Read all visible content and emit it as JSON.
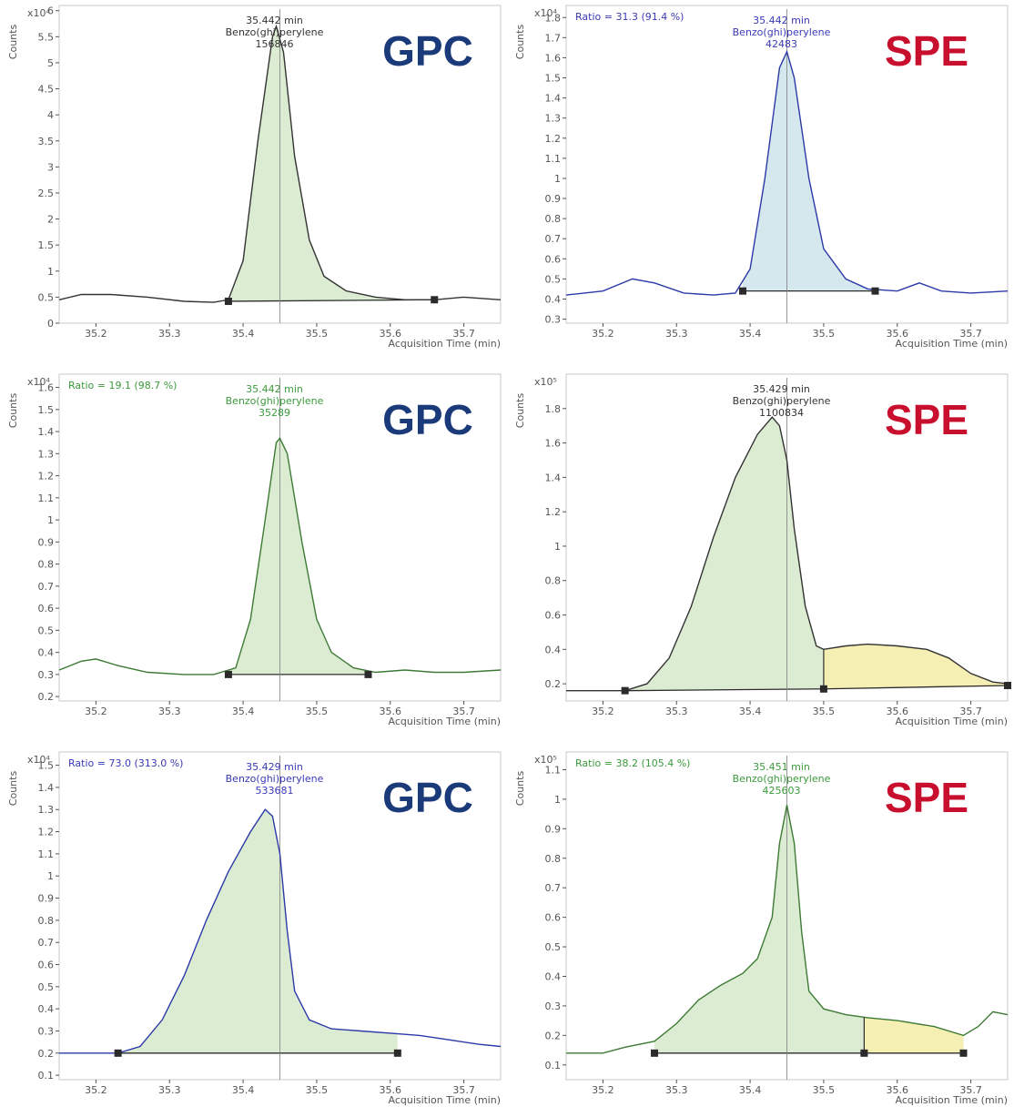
{
  "colors": {
    "gpc_label": "#1b3a7a",
    "spe_label": "#c8102e",
    "fill_green": "#dcecd2",
    "fill_blue": "#d5e8ee",
    "fill_yellow": "#f6efb3",
    "trace_green": "#3d7a35",
    "trace_blue": "#2c3aa8",
    "trace_dark": "#333333",
    "annot_green": "#3c9a3c",
    "annot_blue": "#3a3ab8",
    "annot_dark": "#333333"
  },
  "chart_data": [
    {
      "id": "p1",
      "type": "line",
      "method": "GPC",
      "scale_label": "x10⁴",
      "ylabel": "Counts",
      "xlabel": "Acquisition Time (min)",
      "ratio_text": "",
      "peak_time": "35.442 min",
      "compound": "Benzo(ghi)perylene",
      "peak_area": "156846",
      "annot_color": "annot_dark",
      "trace_color": "trace_dark",
      "fill_color": "fill_green",
      "xlim": [
        35.15,
        35.75
      ],
      "ylim": [
        0,
        6.1
      ],
      "yticks": [
        0,
        0.5,
        1,
        1.5,
        2,
        2.5,
        3,
        3.5,
        4,
        4.5,
        5,
        5.5,
        6
      ],
      "ytick_labels": [
        "0",
        "0.5",
        "1",
        "1.5",
        "2",
        "2.5",
        "3",
        "3.5",
        "4",
        "4.5",
        "5",
        "5.5",
        "6"
      ],
      "xticks": [
        35.2,
        35.3,
        35.4,
        35.5,
        35.6,
        35.7
      ],
      "xtick_labels": [
        "35.2",
        "35.3",
        "35.4",
        "35.5",
        "35.6",
        "35.7"
      ],
      "vline_x": 35.45,
      "trace": [
        [
          35.15,
          0.45
        ],
        [
          35.18,
          0.55
        ],
        [
          35.22,
          0.55
        ],
        [
          35.27,
          0.5
        ],
        [
          35.32,
          0.42
        ],
        [
          35.36,
          0.4
        ],
        [
          35.38,
          0.45
        ],
        [
          35.4,
          1.2
        ],
        [
          35.42,
          3.5
        ],
        [
          35.44,
          5.5
        ],
        [
          35.445,
          5.7
        ],
        [
          35.455,
          5.2
        ],
        [
          35.47,
          3.2
        ],
        [
          35.49,
          1.6
        ],
        [
          35.51,
          0.9
        ],
        [
          35.54,
          0.62
        ],
        [
          35.58,
          0.5
        ],
        [
          35.62,
          0.45
        ],
        [
          35.66,
          0.45
        ],
        [
          35.7,
          0.5
        ],
        [
          35.75,
          0.45
        ]
      ],
      "segments": [
        {
          "start": 35.38,
          "end": 35.66,
          "baseline": [
            0.42,
            0.45
          ],
          "fill": "fill_green"
        }
      ],
      "markers": [
        [
          35.38,
          0.42
        ],
        [
          35.66,
          0.45
        ]
      ],
      "dividers": []
    },
    {
      "id": "p2",
      "type": "line",
      "method": "SPE",
      "scale_label": "x10⁴",
      "ylabel": "Counts",
      "xlabel": "Acquisition Time (min)",
      "ratio_text": "Ratio = 31.3 (91.4 %)",
      "peak_time": "35.442 min",
      "compound": "Benzo(ghi)perylene",
      "peak_area": "42483",
      "annot_color": "annot_blue",
      "trace_color": "trace_blue",
      "fill_color": "fill_blue",
      "xlim": [
        35.15,
        35.75
      ],
      "ylim": [
        0.28,
        1.86
      ],
      "yticks": [
        0.3,
        0.4,
        0.5,
        0.6,
        0.7,
        0.8,
        0.9,
        1.0,
        1.1,
        1.2,
        1.3,
        1.4,
        1.5,
        1.6,
        1.7,
        1.8
      ],
      "ytick_labels": [
        "0.3",
        "0.4",
        "0.5",
        "0.6",
        "0.7",
        "0.8",
        "0.9",
        "1",
        "1.1",
        "1.2",
        "1.3",
        "1.4",
        "1.5",
        "1.6",
        "1.7",
        "1.8"
      ],
      "xticks": [
        35.2,
        35.3,
        35.4,
        35.5,
        35.6,
        35.7
      ],
      "xtick_labels": [
        "35.2",
        "35.3",
        "35.4",
        "35.5",
        "35.6",
        "35.7"
      ],
      "vline_x": 35.45,
      "trace": [
        [
          35.15,
          0.42
        ],
        [
          35.2,
          0.44
        ],
        [
          35.24,
          0.5
        ],
        [
          35.27,
          0.48
        ],
        [
          35.31,
          0.43
        ],
        [
          35.35,
          0.42
        ],
        [
          35.38,
          0.43
        ],
        [
          35.4,
          0.55
        ],
        [
          35.42,
          1.0
        ],
        [
          35.44,
          1.55
        ],
        [
          35.45,
          1.63
        ],
        [
          35.46,
          1.5
        ],
        [
          35.48,
          1.0
        ],
        [
          35.5,
          0.65
        ],
        [
          35.53,
          0.5
        ],
        [
          35.56,
          0.45
        ],
        [
          35.6,
          0.44
        ],
        [
          35.63,
          0.48
        ],
        [
          35.66,
          0.44
        ],
        [
          35.7,
          0.43
        ],
        [
          35.75,
          0.44
        ]
      ],
      "segments": [
        {
          "start": 35.39,
          "end": 35.57,
          "baseline": [
            0.44,
            0.44
          ],
          "fill": "fill_blue"
        }
      ],
      "markers": [
        [
          35.39,
          0.44
        ],
        [
          35.57,
          0.44
        ]
      ],
      "dividers": []
    },
    {
      "id": "p3",
      "type": "line",
      "method": "GPC",
      "scale_label": "x10⁴",
      "ylabel": "Counts",
      "xlabel": "Acquisition Time (min)",
      "ratio_text": "Ratio = 19.1 (98.7 %)",
      "peak_time": "35.442 min",
      "compound": "Benzo(ghi)perylene",
      "peak_area": "35289",
      "annot_color": "annot_green",
      "trace_color": "trace_green",
      "fill_color": "fill_green",
      "xlim": [
        35.15,
        35.75
      ],
      "ylim": [
        0.18,
        1.66
      ],
      "yticks": [
        0.2,
        0.3,
        0.4,
        0.5,
        0.6,
        0.7,
        0.8,
        0.9,
        1.0,
        1.1,
        1.2,
        1.3,
        1.4,
        1.5,
        1.6
      ],
      "ytick_labels": [
        "0.2",
        "0.3",
        "0.4",
        "0.5",
        "0.6",
        "0.7",
        "0.8",
        "0.9",
        "1",
        "1.1",
        "1.2",
        "1.3",
        "1.4",
        "1.5",
        "1.6"
      ],
      "xticks": [
        35.2,
        35.3,
        35.4,
        35.5,
        35.6,
        35.7
      ],
      "xtick_labels": [
        "35.2",
        "35.3",
        "35.4",
        "35.5",
        "35.6",
        "35.7"
      ],
      "vline_x": 35.45,
      "trace": [
        [
          35.15,
          0.32
        ],
        [
          35.18,
          0.36
        ],
        [
          35.2,
          0.37
        ],
        [
          35.23,
          0.34
        ],
        [
          35.27,
          0.31
        ],
        [
          35.32,
          0.3
        ],
        [
          35.36,
          0.3
        ],
        [
          35.39,
          0.33
        ],
        [
          35.41,
          0.55
        ],
        [
          35.43,
          1.0
        ],
        [
          35.445,
          1.35
        ],
        [
          35.45,
          1.37
        ],
        [
          35.46,
          1.3
        ],
        [
          35.48,
          0.9
        ],
        [
          35.5,
          0.55
        ],
        [
          35.52,
          0.4
        ],
        [
          35.55,
          0.33
        ],
        [
          35.58,
          0.31
        ],
        [
          35.62,
          0.32
        ],
        [
          35.66,
          0.31
        ],
        [
          35.7,
          0.31
        ],
        [
          35.75,
          0.32
        ]
      ],
      "segments": [
        {
          "start": 35.38,
          "end": 35.57,
          "baseline": [
            0.3,
            0.3
          ],
          "fill": "fill_green"
        }
      ],
      "markers": [
        [
          35.38,
          0.3
        ],
        [
          35.57,
          0.3
        ]
      ],
      "dividers": []
    },
    {
      "id": "p4",
      "type": "line",
      "method": "SPE",
      "scale_label": "x10⁵",
      "ylabel": "Counts",
      "xlabel": "Acquisition Time (min)",
      "ratio_text": "",
      "peak_time": "35.429 min",
      "compound": "Benzo(ghi)perylene",
      "peak_area": "1100834",
      "annot_color": "annot_dark",
      "trace_color": "trace_dark",
      "fill_color": "fill_green",
      "xlim": [
        35.15,
        35.75
      ],
      "ylim": [
        0.1,
        2.0
      ],
      "yticks": [
        0.2,
        0.4,
        0.6,
        0.8,
        1.0,
        1.2,
        1.4,
        1.6,
        1.8
      ],
      "ytick_labels": [
        "0.2",
        "0.4",
        "0.6",
        "0.8",
        "1",
        "1.2",
        "1.4",
        "1.6",
        "1.8"
      ],
      "xticks": [
        35.2,
        35.3,
        35.4,
        35.5,
        35.6,
        35.7
      ],
      "xtick_labels": [
        "35.2",
        "35.3",
        "35.4",
        "35.5",
        "35.6",
        "35.7"
      ],
      "vline_x": 35.45,
      "trace": [
        [
          35.15,
          0.16
        ],
        [
          35.2,
          0.16
        ],
        [
          35.23,
          0.16
        ],
        [
          35.26,
          0.2
        ],
        [
          35.29,
          0.35
        ],
        [
          35.32,
          0.65
        ],
        [
          35.35,
          1.05
        ],
        [
          35.38,
          1.4
        ],
        [
          35.41,
          1.65
        ],
        [
          35.43,
          1.75
        ],
        [
          35.44,
          1.7
        ],
        [
          35.45,
          1.5
        ],
        [
          35.46,
          1.1
        ],
        [
          35.475,
          0.65
        ],
        [
          35.49,
          0.42
        ],
        [
          35.5,
          0.4
        ],
        [
          35.53,
          0.42
        ],
        [
          35.56,
          0.43
        ],
        [
          35.6,
          0.42
        ],
        [
          35.64,
          0.4
        ],
        [
          35.67,
          0.35
        ],
        [
          35.7,
          0.26
        ],
        [
          35.73,
          0.21
        ],
        [
          35.75,
          0.2
        ]
      ],
      "segments": [
        {
          "start": 35.23,
          "end": 35.5,
          "baseline": [
            0.16,
            0.17
          ],
          "fill": "fill_green"
        },
        {
          "start": 35.5,
          "end": 35.75,
          "baseline": [
            0.17,
            0.19
          ],
          "fill": "fill_yellow"
        }
      ],
      "markers": [
        [
          35.23,
          0.16
        ],
        [
          35.5,
          0.17
        ],
        [
          35.75,
          0.19
        ]
      ],
      "dividers": [
        35.5
      ]
    },
    {
      "id": "p5",
      "type": "line",
      "method": "GPC",
      "scale_label": "x10⁴",
      "ylabel": "Counts",
      "xlabel": "Acquisition Time (min)",
      "ratio_text": "Ratio = 73.0 (313.0 %)",
      "peak_time": "35.429 min",
      "compound": "Benzo(ghi)perylene",
      "peak_area": "533681",
      "annot_color": "annot_blue",
      "trace_color": "trace_blue",
      "fill_color": "fill_green",
      "xlim": [
        35.15,
        35.75
      ],
      "ylim": [
        0.08,
        1.56
      ],
      "yticks": [
        0.1,
        0.2,
        0.3,
        0.4,
        0.5,
        0.6,
        0.7,
        0.8,
        0.9,
        1.0,
        1.1,
        1.2,
        1.3,
        1.4,
        1.5
      ],
      "ytick_labels": [
        "0.1",
        "0.2",
        "0.3",
        "0.4",
        "0.5",
        "0.6",
        "0.7",
        "0.8",
        "0.9",
        "1",
        "1.1",
        "1.2",
        "1.3",
        "1.4",
        "1.5"
      ],
      "xticks": [
        35.2,
        35.3,
        35.4,
        35.5,
        35.6,
        35.7
      ],
      "xtick_labels": [
        "35.2",
        "35.3",
        "35.4",
        "35.5",
        "35.6",
        "35.7"
      ],
      "vline_x": 35.45,
      "trace": [
        [
          35.15,
          0.2
        ],
        [
          35.2,
          0.2
        ],
        [
          35.23,
          0.2
        ],
        [
          35.26,
          0.23
        ],
        [
          35.29,
          0.35
        ],
        [
          35.32,
          0.55
        ],
        [
          35.35,
          0.8
        ],
        [
          35.38,
          1.02
        ],
        [
          35.41,
          1.2
        ],
        [
          35.43,
          1.3
        ],
        [
          35.44,
          1.27
        ],
        [
          35.45,
          1.1
        ],
        [
          35.46,
          0.75
        ],
        [
          35.47,
          0.48
        ],
        [
          35.49,
          0.35
        ],
        [
          35.52,
          0.31
        ],
        [
          35.56,
          0.3
        ],
        [
          35.6,
          0.29
        ],
        [
          35.64,
          0.28
        ],
        [
          35.68,
          0.26
        ],
        [
          35.72,
          0.24
        ],
        [
          35.75,
          0.23
        ]
      ],
      "segments": [
        {
          "start": 35.23,
          "end": 35.61,
          "baseline": [
            0.2,
            0.2
          ],
          "fill": "fill_green"
        }
      ],
      "markers": [
        [
          35.23,
          0.2
        ],
        [
          35.61,
          0.2
        ]
      ],
      "dividers": []
    },
    {
      "id": "p6",
      "type": "line",
      "method": "SPE",
      "scale_label": "x10⁵",
      "ylabel": "Counts",
      "xlabel": "Acquisition Time (min)",
      "ratio_text": "Ratio = 38.2 (105.4 %)",
      "peak_time": "35.451 min",
      "compound": "Benzo(ghi)perylene",
      "peak_area": "425603",
      "annot_color": "annot_green",
      "trace_color": "trace_green",
      "fill_color": "fill_green",
      "xlim": [
        35.15,
        35.75
      ],
      "ylim": [
        0.05,
        1.16
      ],
      "yticks": [
        0.1,
        0.2,
        0.3,
        0.4,
        0.5,
        0.6,
        0.7,
        0.8,
        0.9,
        1.0,
        1.1
      ],
      "ytick_labels": [
        "0.1",
        "0.2",
        "0.3",
        "0.4",
        "0.5",
        "0.6",
        "0.7",
        "0.8",
        "0.9",
        "1",
        "1.1"
      ],
      "xticks": [
        35.2,
        35.3,
        35.4,
        35.5,
        35.6,
        35.7
      ],
      "xtick_labels": [
        "35.2",
        "35.3",
        "35.4",
        "35.5",
        "35.6",
        "35.7"
      ],
      "vline_x": 35.45,
      "trace": [
        [
          35.15,
          0.14
        ],
        [
          35.2,
          0.14
        ],
        [
          35.23,
          0.16
        ],
        [
          35.27,
          0.18
        ],
        [
          35.3,
          0.24
        ],
        [
          35.33,
          0.32
        ],
        [
          35.36,
          0.37
        ],
        [
          35.39,
          0.41
        ],
        [
          35.41,
          0.46
        ],
        [
          35.43,
          0.6
        ],
        [
          35.44,
          0.85
        ],
        [
          35.45,
          0.98
        ],
        [
          35.46,
          0.85
        ],
        [
          35.47,
          0.55
        ],
        [
          35.48,
          0.35
        ],
        [
          35.5,
          0.29
        ],
        [
          35.53,
          0.27
        ],
        [
          35.56,
          0.26
        ],
        [
          35.6,
          0.25
        ],
        [
          35.65,
          0.23
        ],
        [
          35.69,
          0.2
        ],
        [
          35.71,
          0.23
        ],
        [
          35.73,
          0.28
        ],
        [
          35.75,
          0.27
        ]
      ],
      "segments": [
        {
          "start": 35.27,
          "end": 35.555,
          "baseline": [
            0.14,
            0.14
          ],
          "fill": "fill_green"
        },
        {
          "start": 35.555,
          "end": 35.69,
          "baseline": [
            0.14,
            0.14
          ],
          "fill": "fill_yellow"
        }
      ],
      "markers": [
        [
          35.27,
          0.14
        ],
        [
          35.555,
          0.14
        ],
        [
          35.69,
          0.14
        ]
      ],
      "dividers": [
        35.555
      ]
    }
  ]
}
